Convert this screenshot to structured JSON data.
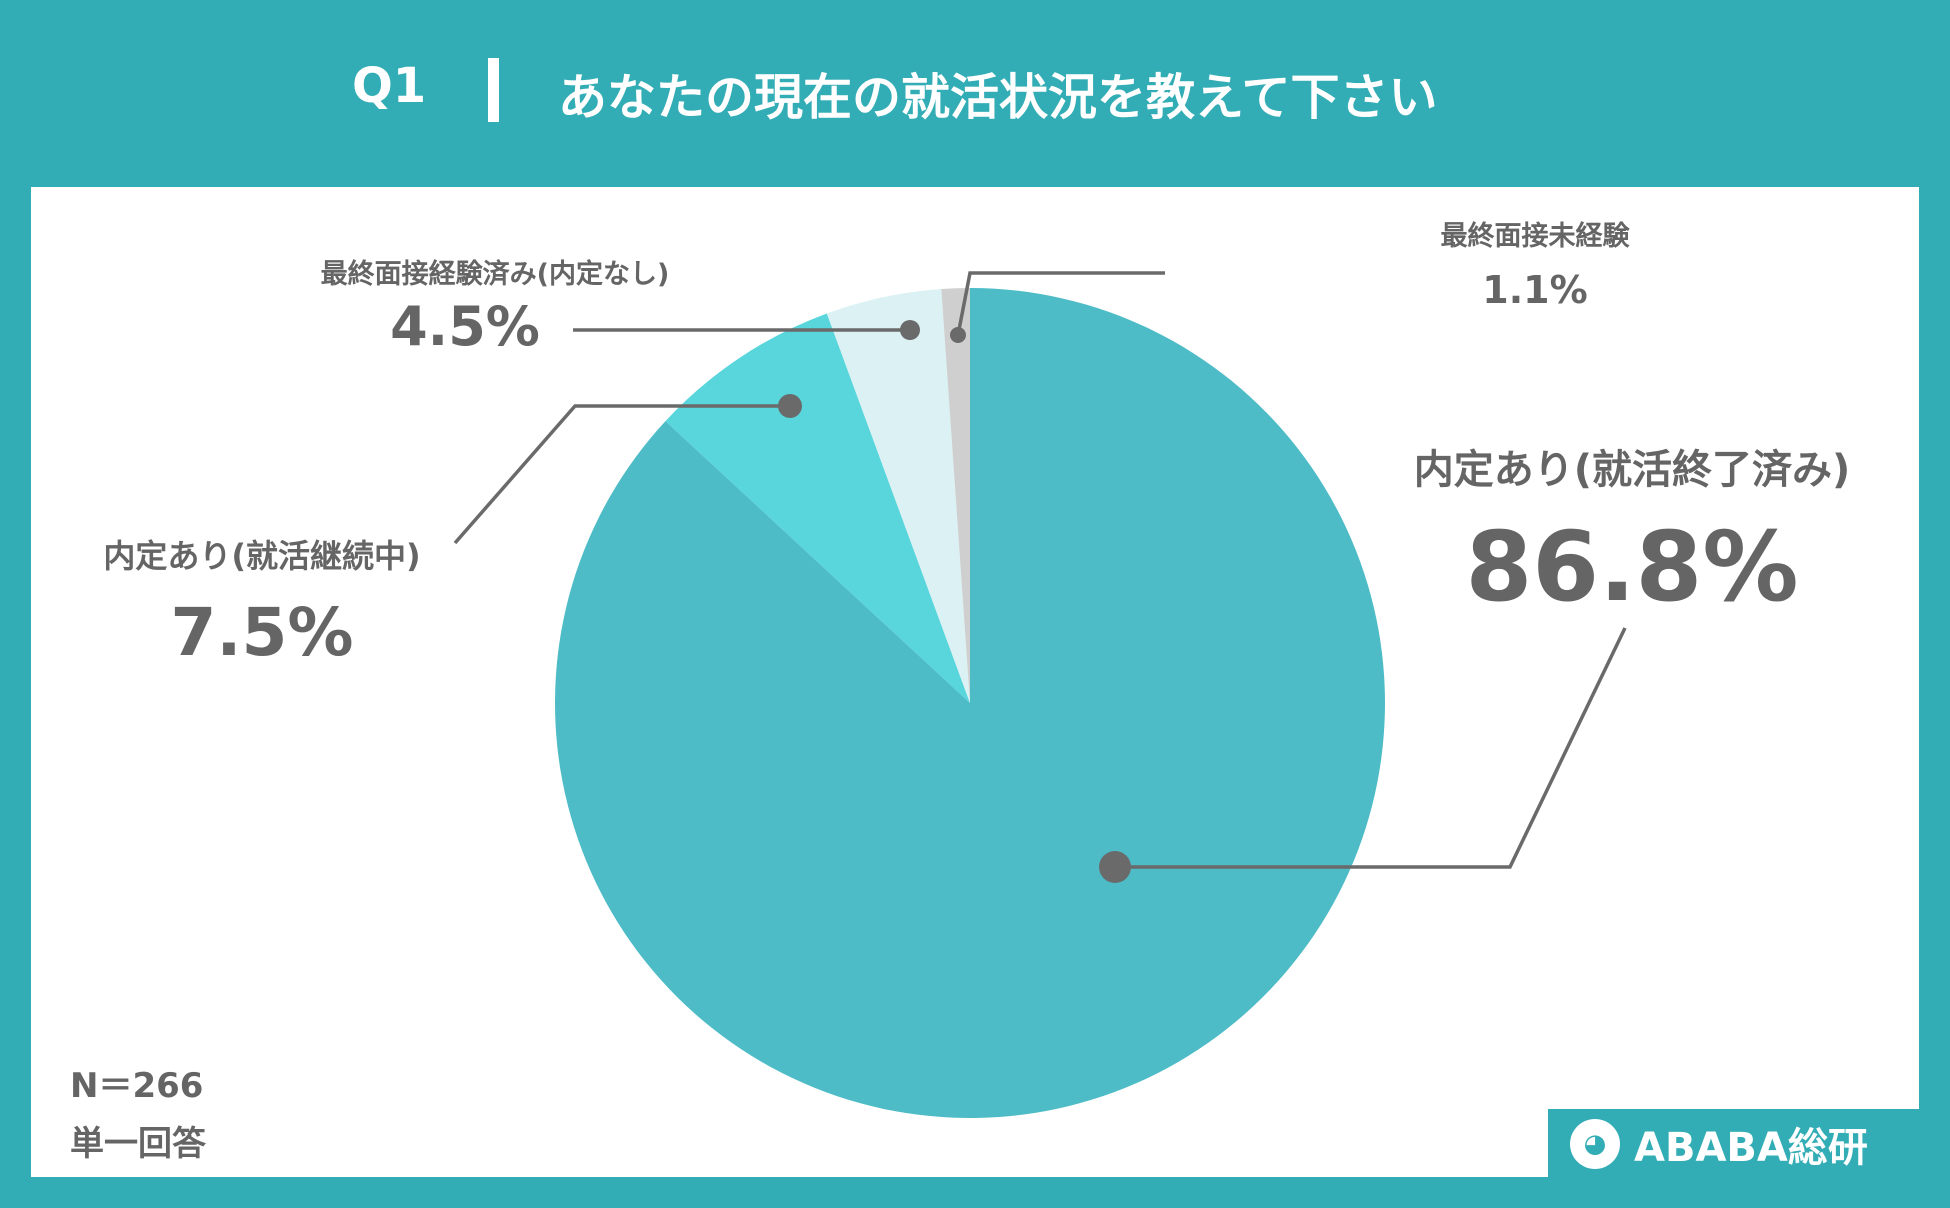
{
  "header": {
    "question": "Q1",
    "title": "あなたの現在の就活状況を教えて下さい"
  },
  "notes": {
    "sample": "N＝266",
    "answer_type": "単一回答"
  },
  "logo": {
    "text": "ABABA総研"
  },
  "colors": {
    "background": "#33adb5",
    "slice_1": "#4dbcc7",
    "slice_2": "#59d5dc",
    "slice_3": "#dbf1f3",
    "slice_4": "#cfcfcf",
    "text": "#656565"
  },
  "chart_data": {
    "type": "pie",
    "title": "",
    "slices": [
      {
        "label": "内定あり(就活終了済み)",
        "value": 86.8,
        "display": "86.8%"
      },
      {
        "label": "内定あり(就活継続中)",
        "value": 7.5,
        "display": "7.5%"
      },
      {
        "label": "最終面接経験済み(内定なし)",
        "value": 4.5,
        "display": "4.5%"
      },
      {
        "label": "最終面接未経験",
        "value": 1.1,
        "display": "1.1%"
      }
    ]
  }
}
